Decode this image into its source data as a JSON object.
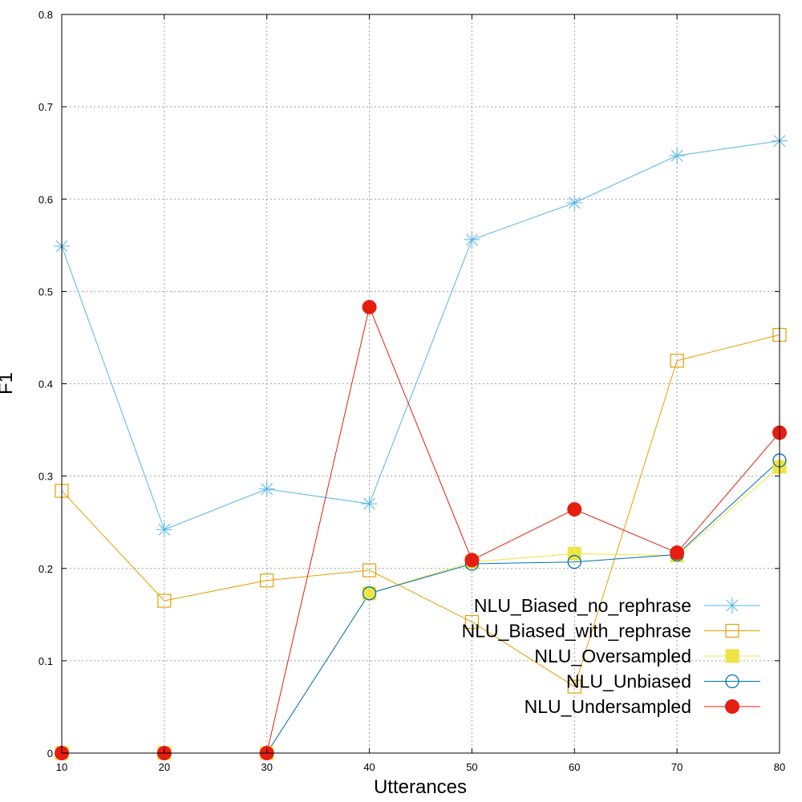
{
  "chart_data": {
    "type": "line",
    "xlabel": "Utterances",
    "ylabel": "F1",
    "x": [
      10,
      20,
      30,
      40,
      50,
      60,
      70,
      80
    ],
    "xlim": [
      10,
      80
    ],
    "ylim": [
      0,
      0.8
    ],
    "xticks": [
      "10",
      "20",
      "30",
      "40",
      "50",
      "60",
      "70",
      "80"
    ],
    "yticks": [
      "0",
      "0.1",
      "0.2",
      "0.3",
      "0.4",
      "0.5",
      "0.6",
      "0.7",
      "0.8"
    ],
    "grid": true,
    "legend_position": "bottom-right",
    "series": [
      {
        "name": "NLU_Biased_no_rephrase",
        "color": "#56b4e9",
        "marker": "asterisk",
        "values": [
          0.549,
          0.242,
          0.286,
          0.27,
          0.556,
          0.596,
          0.647,
          0.663
        ]
      },
      {
        "name": "NLU_Biased_with_rephrase",
        "color": "#e69f00",
        "marker": "open-square",
        "values": [
          0.284,
          0.165,
          0.187,
          0.198,
          0.142,
          0.072,
          0.425,
          0.453
        ]
      },
      {
        "name": "NLU_Oversampled",
        "color": "#f0e442",
        "marker": "filled-square",
        "values": [
          0.0,
          0.0,
          0.0,
          0.173,
          0.207,
          0.216,
          0.214,
          0.31
        ]
      },
      {
        "name": "NLU_Unbiased",
        "color": "#0072b2",
        "marker": "open-circle",
        "values": [
          0.0,
          0.0,
          0.0,
          0.173,
          0.205,
          0.207,
          0.215,
          0.317
        ]
      },
      {
        "name": "NLU_Undersampled",
        "color": "#e51e10",
        "marker": "filled-circle",
        "values": [
          0.0,
          0.0,
          0.0,
          0.483,
          0.209,
          0.264,
          0.217,
          0.347
        ]
      }
    ]
  }
}
